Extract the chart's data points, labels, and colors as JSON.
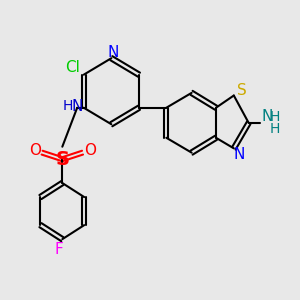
{
  "bg_color": "#e8e8e8",
  "bond_color": "#000000",
  "bond_lw": 1.5,
  "figsize": [
    3.0,
    3.0
  ],
  "dpi": 100,
  "xlim": [
    -0.5,
    9.5
  ],
  "ylim": [
    0.5,
    9.5
  ],
  "cl_color": "#00cc00",
  "n_color": "#0000ff",
  "nh_color": "#0000cc",
  "s_sulfo_color": "#dddd00",
  "o_color": "#ff0000",
  "f_color": "#ff00ff",
  "s_btz_color": "#ccaa00",
  "n_btz_color": "#0000ff",
  "nh2_color": "#008080"
}
